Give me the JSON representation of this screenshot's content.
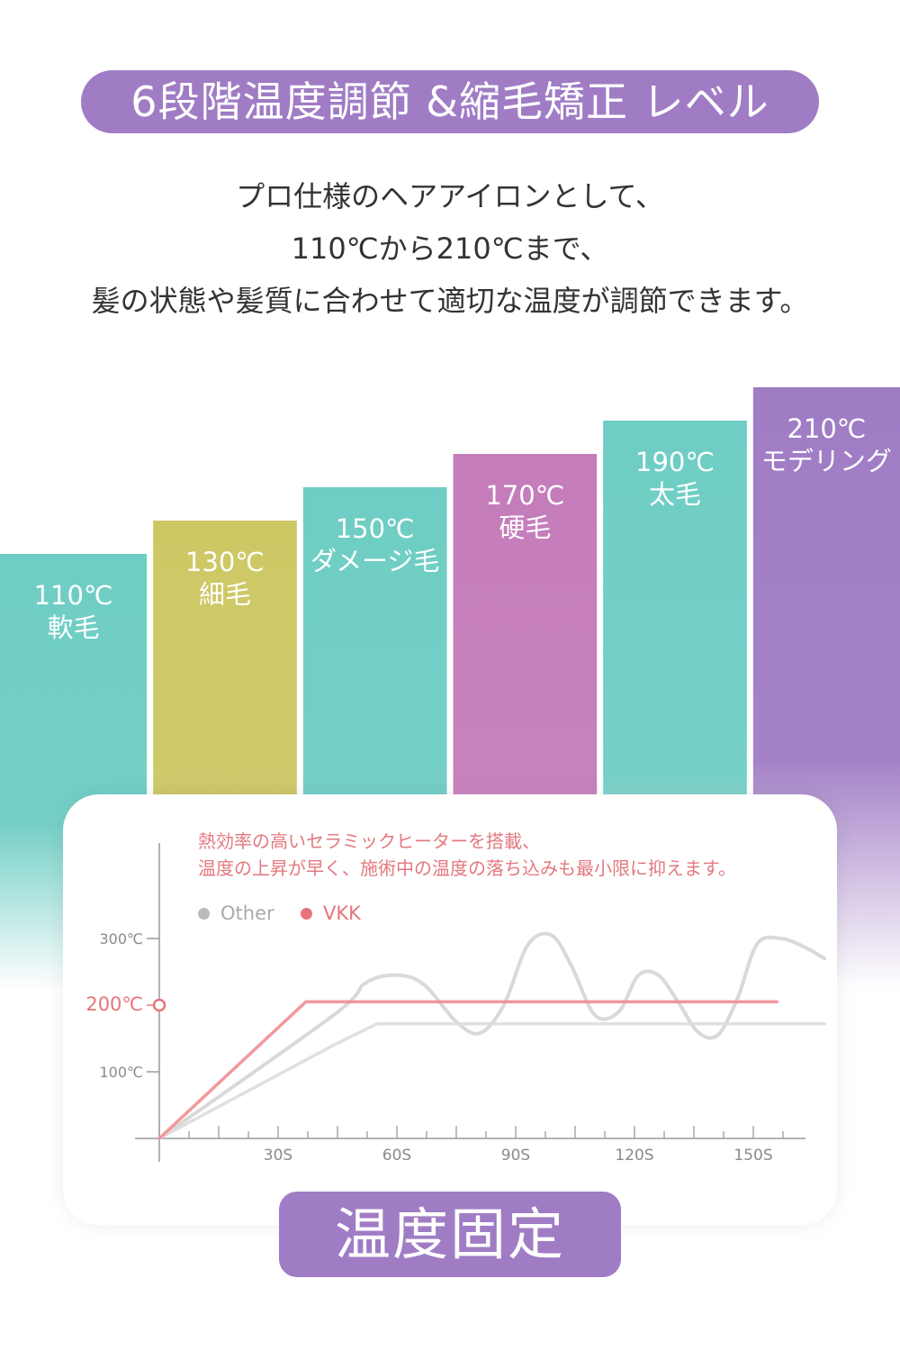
{
  "header": {
    "title": "6段階温度調節 &縮毛矯正 レベル",
    "lines": [
      "プロ仕様のヘアアイロンとして、",
      "110℃から210℃まで、",
      "髪の状態や髪質に合わせて適切な温度が調節できます。"
    ]
  },
  "levels": [
    {
      "temp": "110℃",
      "label": "軟毛",
      "value": 110,
      "color": "#6ecdc4"
    },
    {
      "temp": "130℃",
      "label": "細毛",
      "value": 130,
      "color": "#cdc764"
    },
    {
      "temp": "150℃",
      "label": "ダメージ毛",
      "value": 150,
      "color": "#6ecdc4"
    },
    {
      "temp": "170℃",
      "label": "硬毛",
      "value": 170,
      "color": "#c47cba"
    },
    {
      "temp": "190℃",
      "label": "太毛",
      "value": 190,
      "color": "#6ecdc4"
    },
    {
      "temp": "210℃",
      "label": "モデリング",
      "value": 210,
      "color": "#a07cc5"
    }
  ],
  "card": {
    "note_line1": "熱効率の高いセラミックヒーターを搭載、",
    "note_line2": "温度の上昇が早く、施術中の温度の落ち込みも最小限に抑えます。"
  },
  "chart_data": {
    "type": "line",
    "xlabel": "",
    "ylabel": "",
    "xlim": [
      0,
      165
    ],
    "ylim": [
      0,
      350
    ],
    "x_ticks": [
      "30S",
      "60S",
      "90S",
      "120S",
      "150S"
    ],
    "x_tick_values": [
      30,
      60,
      90,
      120,
      150
    ],
    "y_ticks": [
      "100℃",
      "200℃",
      "300℃"
    ],
    "y_tick_values": [
      100,
      200,
      300
    ],
    "highlight_tick": "200℃",
    "series": [
      {
        "name": "Other",
        "color": "#cccccc",
        "x": [
          0,
          44,
          52,
          60,
          67,
          75,
          81,
          87,
          93,
          99,
          104,
          110,
          116,
          121,
          126,
          131,
          136,
          141,
          146,
          151,
          157,
          163,
          168
        ],
        "y": [
          0,
          185,
          233,
          245,
          230,
          175,
          158,
          200,
          290,
          305,
          260,
          185,
          190,
          245,
          245,
          205,
          160,
          155,
          210,
          292,
          300,
          287,
          270
        ]
      },
      {
        "name": "Other",
        "color": "#dddddd",
        "x": [
          0,
          44,
          55,
          80,
          110,
          140,
          168
        ],
        "y": [
          0,
          140,
          172,
          172,
          172,
          172,
          172
        ]
      },
      {
        "name": "VKK",
        "color": "#ef8d93",
        "x": [
          0,
          37,
          60,
          90,
          120,
          150,
          156
        ],
        "y": [
          0,
          205,
          205,
          205,
          205,
          205,
          205
        ]
      }
    ],
    "legend": [
      {
        "name": "Other",
        "color": "#bbbbbb"
      },
      {
        "name": "VKK",
        "color": "#e8737b"
      }
    ]
  },
  "footer": {
    "label": "温度固定"
  }
}
